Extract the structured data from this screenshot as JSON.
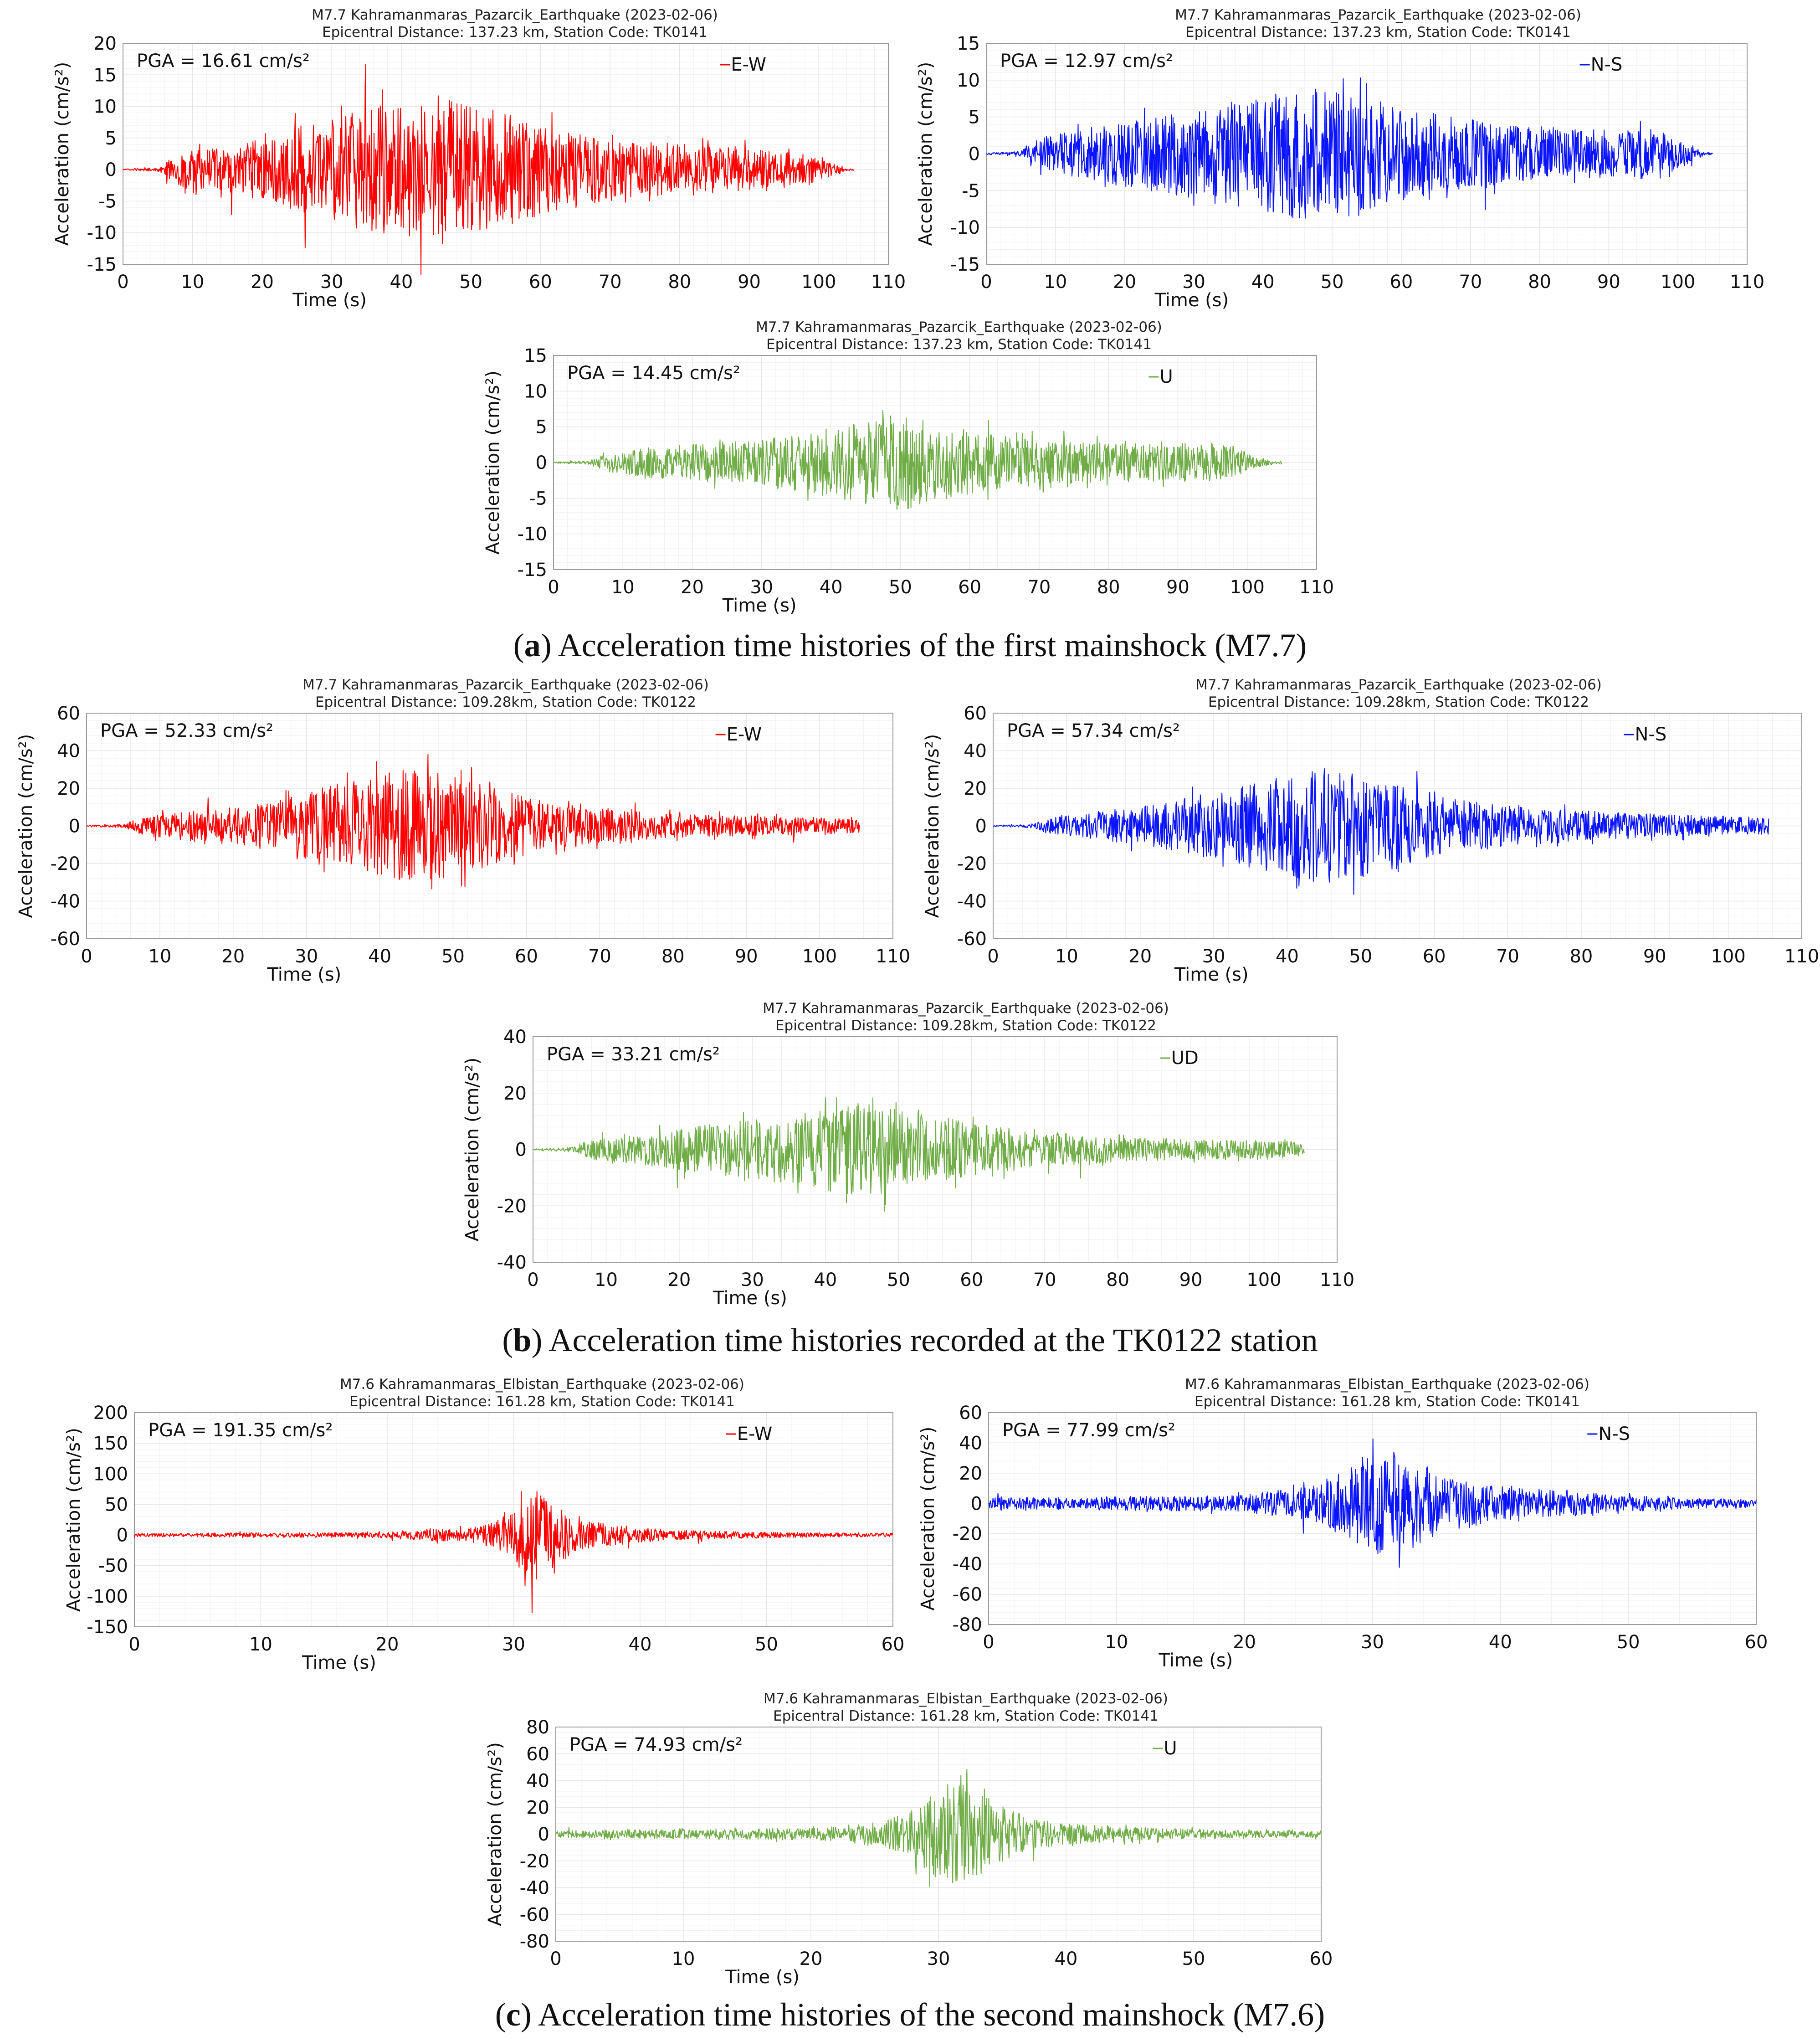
{
  "captions": [
    {
      "letter": "a",
      "text": " Acceleration time histories of the first mainshock (M7.7)"
    },
    {
      "letter": "b",
      "text": " Acceleration time histories recorded at the TK0122 station"
    },
    {
      "letter": "c",
      "text": " Acceleration time histories of the second mainshock (M7.6)"
    }
  ],
  "colors": {
    "E-W": "#ff0000",
    "N-S": "#0a14ff",
    "U": "#70ad47",
    "UD": "#70ad47",
    "grid": "#e6e6e6",
    "axis": "#9a9a9a"
  },
  "chart_data": [
    {
      "id": "a1",
      "type": "line",
      "title": "M7.7 Kahramanmaras_Pazarcik_Earthquake (2023-02-06)",
      "subtitle": "Epicentral Distance: 137.23 km, Station Code: TK0141",
      "xlabel": "Time (s)",
      "ylabel": "Acceleration (cm/s²)",
      "xlim": [
        0,
        110
      ],
      "ylim": [
        -15,
        20
      ],
      "xticks": [
        0,
        10,
        20,
        30,
        40,
        50,
        60,
        70,
        80,
        90,
        100,
        110
      ],
      "yticks": [
        -15,
        -10,
        -5,
        0,
        5,
        10,
        15,
        20
      ],
      "annotation": "PGA = 16.61 cm/s²",
      "pga": 16.61,
      "series": [
        {
          "name": "E-W"
        }
      ],
      "record_end": 105,
      "envelope": [
        [
          0,
          0.1
        ],
        [
          5,
          0.3
        ],
        [
          8,
          3
        ],
        [
          15,
          4
        ],
        [
          22,
          6
        ],
        [
          30,
          9
        ],
        [
          35,
          11
        ],
        [
          42,
          12
        ],
        [
          48,
          12
        ],
        [
          52,
          11
        ],
        [
          60,
          8
        ],
        [
          68,
          6
        ],
        [
          75,
          5
        ],
        [
          82,
          4.5
        ],
        [
          90,
          3.5
        ],
        [
          98,
          3
        ],
        [
          102,
          1
        ],
        [
          104,
          0.2
        ]
      ]
    },
    {
      "id": "a2",
      "type": "line",
      "title": "M7.7 Kahramanmaras_Pazarcik_Earthquake (2023-02-06)",
      "subtitle": "Epicentral Distance: 137.23 km, Station Code: TK0141",
      "xlabel": "Time (s)",
      "ylabel": "Acceleration (cm/s²)",
      "xlim": [
        0,
        110
      ],
      "ylim": [
        -15,
        15
      ],
      "xticks": [
        0,
        10,
        20,
        30,
        40,
        50,
        60,
        70,
        80,
        90,
        100,
        110
      ],
      "yticks": [
        -15,
        -10,
        -5,
        0,
        5,
        10,
        15
      ],
      "annotation": "PGA = 12.97 cm/s²",
      "pga": 12.97,
      "series": [
        {
          "name": "N-S"
        }
      ],
      "record_end": 105,
      "envelope": [
        [
          0,
          0.1
        ],
        [
          5,
          0.4
        ],
        [
          8,
          2.5
        ],
        [
          15,
          4
        ],
        [
          22,
          5.5
        ],
        [
          30,
          7
        ],
        [
          38,
          8.5
        ],
        [
          45,
          10
        ],
        [
          52,
          9.5
        ],
        [
          60,
          7
        ],
        [
          68,
          5.5
        ],
        [
          75,
          4.5
        ],
        [
          82,
          4
        ],
        [
          90,
          3.5
        ],
        [
          97,
          4
        ],
        [
          101,
          1.5
        ],
        [
          104,
          0.2
        ]
      ]
    },
    {
      "id": "a3",
      "type": "line",
      "title": "M7.7 Kahramanmaras_Pazarcik_Earthquake (2023-02-06)",
      "subtitle": "Epicentral Distance: 137.23 km, Station Code: TK0141",
      "xlabel": "Time (s)",
      "ylabel": "Acceleration (cm/s²)",
      "xlim": [
        0,
        110
      ],
      "ylim": [
        -15,
        15
      ],
      "xticks": [
        0,
        10,
        20,
        30,
        40,
        50,
        60,
        70,
        80,
        90,
        100,
        110
      ],
      "yticks": [
        -15,
        -10,
        -5,
        0,
        5,
        10,
        15
      ],
      "annotation": "PGA = 14.45 cm/s²",
      "pga": 14.45,
      "series": [
        {
          "name": "U"
        }
      ],
      "record_end": 105,
      "envelope": [
        [
          0,
          0.1
        ],
        [
          5,
          0.3
        ],
        [
          8,
          1.5
        ],
        [
          15,
          2.5
        ],
        [
          22,
          3
        ],
        [
          30,
          3.5
        ],
        [
          38,
          5
        ],
        [
          45,
          6.5
        ],
        [
          50,
          8
        ],
        [
          55,
          6
        ],
        [
          62,
          4.5
        ],
        [
          70,
          3.5
        ],
        [
          80,
          3
        ],
        [
          90,
          3
        ],
        [
          97,
          3
        ],
        [
          101,
          1
        ],
        [
          104,
          0.2
        ]
      ]
    },
    {
      "id": "b1",
      "type": "line",
      "title": "M7.7 Kahramanmaras_Pazarcik_Earthquake (2023-02-06)",
      "subtitle": "Epicentral Distance: 109.28km, Station Code: TK0122",
      "xlabel": "Time (s)",
      "ylabel": "Acceleration (cm/s²)",
      "xlim": [
        0,
        110
      ],
      "ylim": [
        -60,
        60
      ],
      "xticks": [
        0,
        10,
        20,
        30,
        40,
        50,
        60,
        70,
        80,
        90,
        100,
        110
      ],
      "yticks": [
        -60,
        -40,
        -20,
        0,
        20,
        40,
        60
      ],
      "annotation": "PGA = 52.33 cm/s²",
      "pga": 52.33,
      "series": [
        {
          "name": "E-W"
        }
      ],
      "record_end": 105.5,
      "envelope": [
        [
          0,
          0.3
        ],
        [
          5,
          1
        ],
        [
          8,
          6
        ],
        [
          15,
          9
        ],
        [
          22,
          12
        ],
        [
          30,
          20
        ],
        [
          38,
          30
        ],
        [
          45,
          33
        ],
        [
          50,
          30
        ],
        [
          56,
          22
        ],
        [
          62,
          15
        ],
        [
          70,
          10
        ],
        [
          80,
          7
        ],
        [
          90,
          6
        ],
        [
          100,
          5
        ],
        [
          105,
          4
        ]
      ]
    },
    {
      "id": "b2",
      "type": "line",
      "title": "M7.7 Kahramanmaras_Pazarcik_Earthquake (2023-02-06)",
      "subtitle": "Epicentral Distance: 109.28km, Station Code: TK0122",
      "xlabel": "Time (s)",
      "ylabel": "Acceleration (cm/s²)",
      "xlim": [
        0,
        110
      ],
      "ylim": [
        -60,
        60
      ],
      "xticks": [
        0,
        10,
        20,
        30,
        40,
        50,
        60,
        70,
        80,
        90,
        100,
        110
      ],
      "yticks": [
        -60,
        -40,
        -20,
        0,
        20,
        40,
        60
      ],
      "annotation": "PGA = 57.34 cm/s²",
      "pga": 57.34,
      "series": [
        {
          "name": "N-S"
        }
      ],
      "record_end": 105.5,
      "envelope": [
        [
          0,
          0.3
        ],
        [
          5,
          1
        ],
        [
          8,
          5
        ],
        [
          15,
          9
        ],
        [
          22,
          13
        ],
        [
          30,
          20
        ],
        [
          38,
          28
        ],
        [
          45,
          34
        ],
        [
          50,
          32
        ],
        [
          56,
          24
        ],
        [
          62,
          17
        ],
        [
          70,
          12
        ],
        [
          80,
          9
        ],
        [
          90,
          7
        ],
        [
          100,
          6
        ],
        [
          105,
          5
        ]
      ]
    },
    {
      "id": "b3",
      "type": "line",
      "title": "M7.7 Kahramanmaras_Pazarcik_Earthquake (2023-02-06)",
      "subtitle": "Epicentral Distance: 109.28km, Station Code: TK0122",
      "xlabel": "Time (s)",
      "ylabel": "Acceleration (cm/s²)",
      "xlim": [
        0,
        110
      ],
      "ylim": [
        -40,
        40
      ],
      "xticks": [
        0,
        10,
        20,
        30,
        40,
        50,
        60,
        70,
        80,
        90,
        100,
        110
      ],
      "yticks": [
        -40,
        -20,
        0,
        20,
        40
      ],
      "annotation": "PGA = 33.21 cm/s²",
      "pga": 33.21,
      "series": [
        {
          "name": "UD"
        }
      ],
      "record_end": 105.5,
      "envelope": [
        [
          0,
          0.2
        ],
        [
          5,
          0.8
        ],
        [
          8,
          4
        ],
        [
          15,
          6
        ],
        [
          22,
          9
        ],
        [
          30,
          12
        ],
        [
          38,
          15
        ],
        [
          45,
          19
        ],
        [
          50,
          18
        ],
        [
          56,
          13
        ],
        [
          62,
          10
        ],
        [
          70,
          7
        ],
        [
          80,
          5
        ],
        [
          90,
          4
        ],
        [
          100,
          4
        ],
        [
          105,
          3
        ]
      ]
    },
    {
      "id": "c1",
      "type": "line",
      "title": "M7.6 Kahramanmaras_Elbistan_Earthquake (2023-02-06)",
      "subtitle": "Epicentral Distance: 161.28 km, Station Code: TK0141",
      "xlabel": "Time (s)",
      "ylabel": "Acceleration (cm/s²)",
      "xlim": [
        0,
        60
      ],
      "ylim": [
        -150,
        200
      ],
      "xticks": [
        0,
        10,
        20,
        30,
        40,
        50,
        60
      ],
      "yticks": [
        -150,
        -100,
        -50,
        0,
        50,
        100,
        150,
        200
      ],
      "annotation": "PGA = 191.35 cm/s²",
      "pga": 191.35,
      "series": [
        {
          "name": "E-W"
        }
      ],
      "record_end": 60,
      "envelope": [
        [
          0,
          3
        ],
        [
          10,
          4
        ],
        [
          20,
          5
        ],
        [
          23,
          12
        ],
        [
          26,
          10
        ],
        [
          28,
          20
        ],
        [
          30,
          45
        ],
        [
          31.5,
          90
        ],
        [
          33,
          55
        ],
        [
          35,
          30
        ],
        [
          38,
          18
        ],
        [
          42,
          10
        ],
        [
          48,
          6
        ],
        [
          55,
          4
        ],
        [
          60,
          3
        ]
      ]
    },
    {
      "id": "c2",
      "type": "line",
      "title": "M7.6 Kahramanmaras_Elbistan_Earthquake (2023-02-06)",
      "subtitle": "Epicentral Distance: 161.28 km, Station Code: TK0141",
      "xlabel": "Time (s)",
      "ylabel": "Acceleration (cm/s²)",
      "xlim": [
        0,
        60
      ],
      "ylim": [
        -80,
        60
      ],
      "xticks": [
        0,
        10,
        20,
        30,
        40,
        50,
        60
      ],
      "yticks": [
        -80,
        -60,
        -40,
        -20,
        0,
        20,
        40,
        60
      ],
      "annotation": "PGA = 77.99 cm/s²",
      "pga": 77.99,
      "series": [
        {
          "name": "N-S"
        }
      ],
      "record_end": 60,
      "envelope": [
        [
          0,
          4
        ],
        [
          10,
          5
        ],
        [
          20,
          6
        ],
        [
          22,
          9
        ],
        [
          25,
          12
        ],
        [
          28,
          25
        ],
        [
          30,
          40
        ],
        [
          32,
          42
        ],
        [
          34,
          28
        ],
        [
          37,
          18
        ],
        [
          40,
          13
        ],
        [
          45,
          9
        ],
        [
          50,
          6
        ],
        [
          55,
          4
        ],
        [
          60,
          3
        ]
      ]
    },
    {
      "id": "c3",
      "type": "line",
      "title": "M7.6 Kahramanmaras_Elbistan_Earthquake (2023-02-06)",
      "subtitle": "Epicentral Distance: 161.28 km, Station Code: TK0141",
      "xlabel": "Time (s)",
      "ylabel": "Acceleration (cm/s²)",
      "xlim": [
        0,
        60
      ],
      "ylim": [
        -80,
        80
      ],
      "xticks": [
        0,
        10,
        20,
        30,
        40,
        50,
        60
      ],
      "yticks": [
        -80,
        -60,
        -40,
        -20,
        0,
        20,
        40,
        60,
        80
      ],
      "annotation": "PGA = 74.93 cm/s²",
      "pga": 74.93,
      "series": [
        {
          "name": "U"
        }
      ],
      "record_end": 60,
      "envelope": [
        [
          0,
          3
        ],
        [
          10,
          4
        ],
        [
          20,
          5
        ],
        [
          23,
          7
        ],
        [
          26,
          12
        ],
        [
          28,
          20
        ],
        [
          30,
          40
        ],
        [
          32,
          45
        ],
        [
          34,
          28
        ],
        [
          37,
          14
        ],
        [
          40,
          9
        ],
        [
          45,
          6
        ],
        [
          50,
          4
        ],
        [
          55,
          3
        ],
        [
          60,
          3
        ]
      ]
    }
  ]
}
